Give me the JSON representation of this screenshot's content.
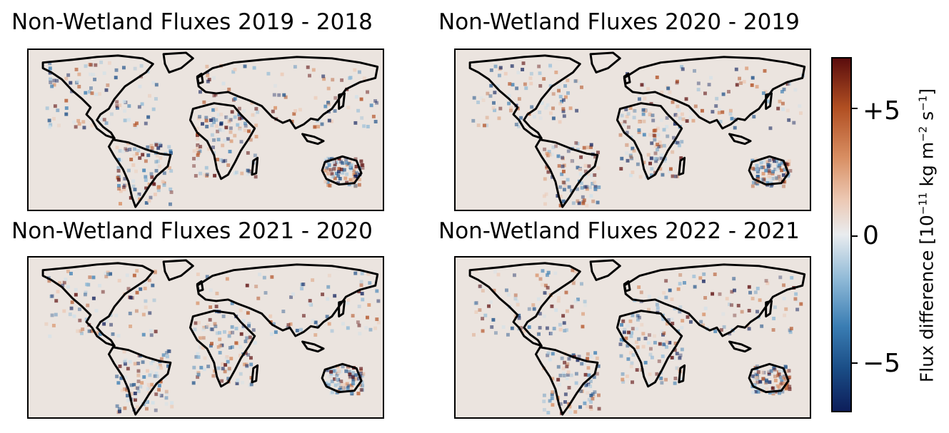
{
  "panels": [
    {
      "title": "Non-Wetland Fluxes 2019 - 2018"
    },
    {
      "title": "Non-Wetland Fluxes 2020 - 2019"
    },
    {
      "title": "Non-Wetland Fluxes 2021 - 2020"
    },
    {
      "title": "Non-Wetland Fluxes 2022 - 2021"
    }
  ],
  "colorbar": {
    "label_main": "Flux difference [10",
    "label_exp1": "−11",
    "label_mid": " kg m",
    "label_exp2": "−2",
    "label_mid2": " s",
    "label_exp3": "−1",
    "label_end": "]",
    "ticks": [
      "+5",
      "0",
      "−5"
    ],
    "colormap": "diverging blue-white-red",
    "colors": {
      "low": "#0d1e5a",
      "mid": "#e9ecef",
      "high": "#5b0d0d",
      "background": "#ebe4df"
    }
  }
}
